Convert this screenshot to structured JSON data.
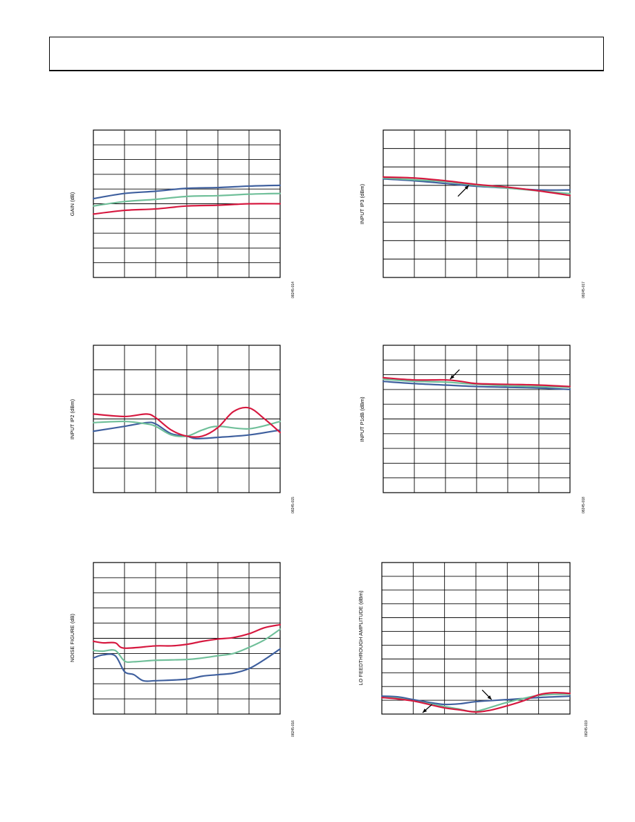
{
  "header": {},
  "colors": {
    "blue": "#3e5f9e",
    "green": "#6fbf99",
    "red": "#d6183f"
  },
  "charts": [
    {
      "id": "gain",
      "ylabel": "GAIN (dB)",
      "figid": "08245-014",
      "chart_data": {
        "type": "line",
        "xlim": [
          0,
          6
        ],
        "ylim": [
          0,
          10
        ],
        "xdiv": 6,
        "ydiv": 10,
        "series": [
          {
            "color": "blue",
            "x": [
              0,
              1,
              2,
              3,
              4,
              5,
              6
            ],
            "values": [
              5.35,
              5.7,
              5.85,
              6.05,
              6.1,
              6.2,
              6.25
            ]
          },
          {
            "color": "green",
            "x": [
              0,
              1,
              2,
              3,
              4,
              5,
              6
            ],
            "values": [
              4.85,
              5.15,
              5.3,
              5.5,
              5.55,
              5.65,
              5.7
            ]
          },
          {
            "color": "red",
            "x": [
              0,
              1,
              2,
              3,
              4,
              5,
              6
            ],
            "values": [
              4.3,
              4.55,
              4.65,
              4.85,
              4.9,
              5.0,
              5.0
            ]
          }
        ]
      }
    },
    {
      "id": "iip3",
      "ylabel": "INPUT IP3 (dBm)",
      "figid": "08245-017",
      "chart_data": {
        "type": "line",
        "xlim": [
          0,
          6
        ],
        "ylim": [
          0,
          8
        ],
        "xdiv": 6,
        "ydiv": 8,
        "series": [
          {
            "color": "blue",
            "x": [
              0,
              1,
              2,
              3,
              4,
              5,
              6
            ],
            "values": [
              5.35,
              5.25,
              5.1,
              4.95,
              4.85,
              4.75,
              4.75
            ]
          },
          {
            "color": "green",
            "x": [
              0,
              1,
              2,
              3,
              4,
              5,
              6
            ],
            "values": [
              5.4,
              5.3,
              5.2,
              5.0,
              4.85,
              4.7,
              4.55
            ]
          },
          {
            "color": "red",
            "x": [
              0,
              1,
              2,
              3,
              4,
              5,
              6
            ],
            "values": [
              5.45,
              5.4,
              5.25,
              5.05,
              4.9,
              4.7,
              4.45
            ]
          }
        ],
        "annotations": [
          {
            "type": "arrow",
            "from": [
              2.4,
              4.4
            ],
            "to": [
              2.75,
              5.0
            ]
          }
        ]
      }
    },
    {
      "id": "iip2",
      "ylabel": "INPUT IP2 (dBm)",
      "figid": "08245-015",
      "chart_data": {
        "type": "line",
        "xlim": [
          0,
          6
        ],
        "ylim": [
          0,
          6
        ],
        "xdiv": 6,
        "ydiv": 6,
        "series": [
          {
            "color": "blue",
            "x": [
              0,
              1,
              1.7,
              2,
              2.5,
              3,
              3.3,
              4,
              5,
              6
            ],
            "values": [
              2.5,
              2.7,
              2.85,
              2.8,
              2.4,
              2.3,
              2.2,
              2.25,
              2.35,
              2.55
            ]
          },
          {
            "color": "green",
            "x": [
              0,
              1,
              1.7,
              2,
              2.5,
              3,
              3.5,
              4,
              5,
              6
            ],
            "values": [
              2.85,
              2.9,
              2.8,
              2.7,
              2.35,
              2.3,
              2.55,
              2.7,
              2.6,
              2.9
            ]
          },
          {
            "color": "red",
            "x": [
              0,
              1,
              1.7,
              2,
              2.5,
              3,
              3.5,
              4,
              4.5,
              5,
              5.5,
              6
            ],
            "values": [
              3.2,
              3.1,
              3.2,
              3.05,
              2.55,
              2.3,
              2.3,
              2.65,
              3.3,
              3.45,
              3.0,
              2.45
            ]
          }
        ]
      }
    },
    {
      "id": "ip1db",
      "ylabel": "INPUT P1dB (dBm)",
      "figid": "08245-018",
      "chart_data": {
        "type": "line",
        "xlim": [
          0,
          6
        ],
        "ylim": [
          0,
          10
        ],
        "xdiv": 6,
        "ydiv": 10,
        "series": [
          {
            "color": "blue",
            "x": [
              0,
              1,
              2,
              3,
              4,
              5,
              6
            ],
            "values": [
              7.55,
              7.4,
              7.3,
              7.2,
              7.15,
              7.1,
              7.0
            ]
          },
          {
            "color": "green",
            "x": [
              0,
              1,
              2,
              3,
              4,
              5,
              6
            ],
            "values": [
              7.7,
              7.55,
              7.5,
              7.35,
              7.25,
              7.2,
              7.15
            ]
          },
          {
            "color": "red",
            "x": [
              0,
              1,
              2,
              2.5,
              3,
              4,
              5,
              6
            ],
            "values": [
              7.8,
              7.65,
              7.65,
              7.55,
              7.4,
              7.35,
              7.3,
              7.2
            ]
          }
        ],
        "annotations": [
          {
            "type": "arrow",
            "from": [
              2.45,
              8.35
            ],
            "to": [
              2.15,
              7.7
            ]
          }
        ]
      }
    },
    {
      "id": "nf",
      "ylabel": "NOISE FIGURE (dB)",
      "figid": "08245-016",
      "chart_data": {
        "type": "line",
        "xlim": [
          0,
          6
        ],
        "ylim": [
          0,
          10
        ],
        "xdiv": 6,
        "ydiv": 10,
        "series": [
          {
            "color": "blue",
            "x": [
              0,
              0.3,
              0.7,
              1,
              1.3,
              1.6,
              2,
              3,
              3.5,
              4,
              4.5,
              5,
              5.5,
              6
            ],
            "values": [
              3.7,
              3.9,
              3.85,
              2.8,
              2.6,
              2.2,
              2.2,
              2.3,
              2.5,
              2.6,
              2.7,
              3.0,
              3.6,
              4.3
            ]
          },
          {
            "color": "green",
            "x": [
              0,
              0.3,
              0.7,
              1,
              1.3,
              2,
              3,
              3.5,
              4,
              4.5,
              5,
              5.5,
              6
            ],
            "values": [
              4.2,
              4.15,
              4.2,
              3.5,
              3.45,
              3.55,
              3.6,
              3.7,
              3.85,
              4.0,
              4.4,
              4.9,
              5.6
            ]
          },
          {
            "color": "red",
            "x": [
              0,
              0.3,
              0.7,
              1,
              2,
              2.5,
              3,
              3.5,
              4,
              4.5,
              5,
              5.5,
              6
            ],
            "values": [
              4.8,
              4.7,
              4.7,
              4.35,
              4.5,
              4.5,
              4.6,
              4.8,
              4.95,
              5.05,
              5.3,
              5.7,
              5.9
            ]
          }
        ]
      }
    },
    {
      "id": "lofeed",
      "ylabel": "LO FEEDTHROUGH AMPLITUDE (dBm)",
      "figid": "08245-019",
      "chart_data": {
        "type": "line",
        "xlim": [
          0,
          6
        ],
        "ylim": [
          0,
          11
        ],
        "xdiv": 6,
        "ydiv": 11,
        "series": [
          {
            "color": "blue",
            "x": [
              0,
              0.5,
              1,
              1.5,
              2,
              2.5,
              3,
              4,
              5,
              6
            ],
            "values": [
              1.3,
              1.25,
              1.05,
              0.85,
              0.7,
              0.75,
              0.9,
              1.05,
              1.2,
              1.3
            ]
          },
          {
            "color": "green",
            "x": [
              0,
              0.5,
              1,
              1.5,
              2,
              2.5,
              3,
              4,
              5,
              6
            ],
            "values": [
              1.2,
              1.15,
              0.95,
              0.75,
              0.55,
              0.35,
              0.2,
              0.85,
              1.35,
              1.45
            ]
          },
          {
            "color": "red",
            "x": [
              0,
              0.5,
              1,
              1.5,
              2,
              2.5,
              3,
              3.5,
              4,
              4.5,
              5,
              5.5,
              6
            ],
            "values": [
              1.2,
              1.1,
              0.95,
              0.7,
              0.45,
              0.3,
              0.15,
              0.3,
              0.6,
              0.95,
              1.4,
              1.55,
              1.5
            ]
          }
        ],
        "annotations": [
          {
            "type": "arrow",
            "from": [
              1.6,
              0.7
            ],
            "to": [
              1.3,
              0.1
            ]
          },
          {
            "type": "arrow",
            "from": [
              3.2,
              1.75
            ],
            "to": [
              3.5,
              1.05
            ]
          }
        ]
      }
    }
  ]
}
